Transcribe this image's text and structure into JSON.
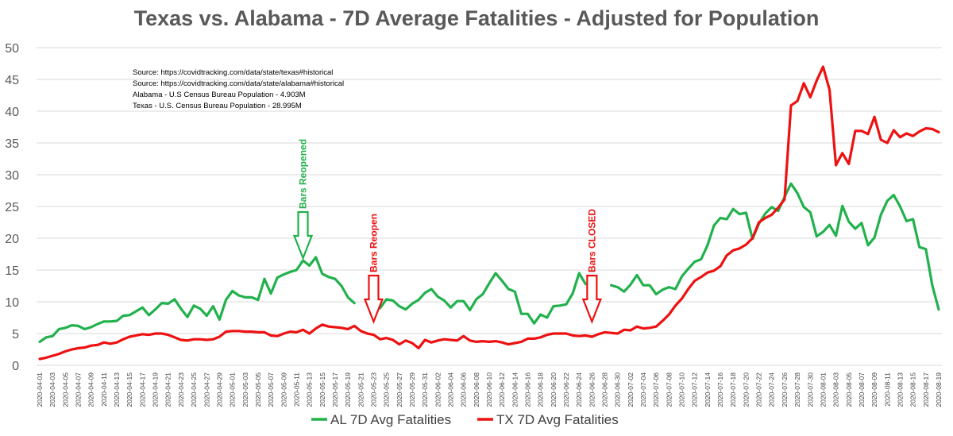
{
  "chart_data": {
    "type": "line",
    "title": "Texas vs. Alabama - 7D Average Fatalities - Adjusted for Population",
    "xlabel": "",
    "ylabel": "",
    "ylim": [
      0,
      50
    ],
    "yticks": [
      0,
      5,
      10,
      15,
      20,
      25,
      30,
      35,
      40,
      45,
      50
    ],
    "grid": true,
    "legend_position": "bottom",
    "x_tick_labels": [
      "2020-04-01",
      "2020-04-03",
      "2020-04-05",
      "2020-04-07",
      "2020-04-09",
      "2020-04-11",
      "2020-04-13",
      "2020-04-15",
      "2020-04-17",
      "2020-04-19",
      "2020-04-21",
      "2020-04-23",
      "2020-04-25",
      "2020-04-27",
      "2020-04-29",
      "2020-05-01",
      "2020-05-03",
      "2020-05-05",
      "2020-05-07",
      "2020-05-09",
      "2020-05-11",
      "2020-05-13",
      "2020-05-15",
      "2020-05-17",
      "2020-05-19",
      "2020-05-21",
      "2020-05-23",
      "2020-05-25",
      "2020-05-27",
      "2020-05-29",
      "2020-05-31",
      "2020-06-02",
      "2020-06-04",
      "2020-06-06",
      "2020-06-08",
      "2020-06-10",
      "2020-06-12",
      "2020-06-14",
      "2020-06-16",
      "2020-06-18",
      "2020-06-20",
      "2020-06-22",
      "2020-06-24",
      "2020-06-26",
      "2020-06-28",
      "2020-06-30",
      "2020-07-02",
      "2020-07-04",
      "2020-07-06",
      "2020-07-08",
      "2020-07-10",
      "2020-07-12",
      "2020-07-14",
      "2020-07-16",
      "2020-07-18",
      "2020-07-20",
      "2020-07-22",
      "2020-07-24",
      "2020-07-26",
      "2020-07-28",
      "2020-07-30",
      "2020-08-01",
      "2020-08-03",
      "2020-08-05",
      "2020-08-07",
      "2020-08-09",
      "2020-08-11",
      "2020-08-13",
      "2020-08-15",
      "2020-08-17",
      "2020-08-19"
    ],
    "series": [
      {
        "name": "AL 7D Avg Fatalities",
        "color": "#22b14c",
        "values": [
          3.7,
          4.4,
          4.6,
          5.7,
          5.9,
          6.3,
          6.2,
          5.7,
          6.0,
          6.5,
          6.9,
          6.9,
          7.0,
          7.8,
          7.9,
          8.5,
          9.1,
          7.9,
          8.8,
          9.8,
          9.7,
          10.4,
          8.9,
          7.6,
          9.4,
          8.9,
          7.8,
          9.3,
          7.2,
          10.3,
          11.7,
          11.0,
          10.7,
          10.7,
          10.3,
          13.6,
          11.3,
          13.8,
          14.3,
          14.7,
          15.0,
          16.5,
          15.7,
          17.0,
          14.4,
          13.9,
          13.6,
          12.5,
          10.7,
          9.8,
          null,
          null,
          null,
          9.0,
          10.4,
          10.2,
          9.3,
          8.8,
          9.7,
          10.3,
          11.4,
          12.0,
          10.8,
          10.2,
          9.1,
          10.1,
          10.1,
          8.7,
          10.4,
          11.2,
          12.9,
          14.5,
          13.3,
          12.0,
          11.6,
          8.1,
          8.1,
          6.6,
          8.0,
          7.5,
          9.3,
          9.4,
          9.6,
          11.3,
          14.5,
          12.8,
          null,
          null,
          null,
          12.6,
          12.3,
          11.6,
          12.7,
          14.2,
          12.6,
          12.6,
          11.2,
          11.9,
          12.3,
          12.0,
          14.0,
          15.2,
          16.3,
          16.7,
          18.9,
          22.0,
          23.2,
          23.0,
          24.6,
          23.8,
          24.0,
          19.9,
          22.3,
          23.9,
          24.9,
          24.3,
          26.5,
          28.6,
          27.1,
          24.9,
          24.1,
          20.3,
          21.0,
          22.1,
          20.4,
          25.1,
          22.6,
          21.5,
          22.4,
          18.9,
          20.1,
          23.7,
          25.9,
          26.8,
          25.0,
          22.7,
          23.0,
          18.6,
          18.3,
          12.6,
          8.8
        ]
      },
      {
        "name": "TX 7D Avg Fatalities",
        "color": "#ee1111",
        "values": [
          1.0,
          1.2,
          1.5,
          1.8,
          2.2,
          2.5,
          2.7,
          2.8,
          3.1,
          3.2,
          3.6,
          3.4,
          3.6,
          4.1,
          4.5,
          4.7,
          4.9,
          4.8,
          5.0,
          5.0,
          4.8,
          4.4,
          4.0,
          3.9,
          4.1,
          4.1,
          4.0,
          4.1,
          4.5,
          5.3,
          5.4,
          5.4,
          5.3,
          5.3,
          5.2,
          5.2,
          4.7,
          4.6,
          5.0,
          5.3,
          5.2,
          5.6,
          5.0,
          5.8,
          6.4,
          6.1,
          6.0,
          5.9,
          5.7,
          6.2,
          5.4,
          5.0,
          4.8,
          4.1,
          4.3,
          4.0,
          3.3,
          3.9,
          3.5,
          2.7,
          4.0,
          3.6,
          3.9,
          4.1,
          4.0,
          3.9,
          4.6,
          3.9,
          3.7,
          3.8,
          3.7,
          3.8,
          3.6,
          3.3,
          3.5,
          3.7,
          4.2,
          4.2,
          4.4,
          4.8,
          5.0,
          5.0,
          5.0,
          4.7,
          4.6,
          4.7,
          4.5,
          4.9,
          5.2,
          5.1,
          5.0,
          5.6,
          5.5,
          6.1,
          5.8,
          5.9,
          6.1,
          7.0,
          8.0,
          9.4,
          10.5,
          12.0,
          13.3,
          13.9,
          14.6,
          14.9,
          15.6,
          17.3,
          18.1,
          18.4,
          19.0,
          20.0,
          22.5,
          23.2,
          23.7,
          24.8,
          26.1,
          40.9,
          41.6,
          44.4,
          42.2,
          44.8,
          47.0,
          43.4,
          31.5,
          33.4,
          31.7,
          36.9,
          36.9,
          36.4,
          39.1,
          35.5,
          35.0,
          37.0,
          35.9,
          36.5,
          36.1,
          36.8,
          37.3,
          37.2,
          36.7
        ]
      }
    ],
    "notes": [
      "Source:  https://covidtracking.com/data/state/texas#historical",
      "Source:  https://covidtracking.com/data/state/alabama#historical",
      "Alabama - U.S Census Bureau Population - 4.903M",
      "Texas - U.S. Census Bureau Population - 28.995M"
    ],
    "annotations": [
      {
        "text": "Bars Reopened",
        "date_index": 41,
        "color": "#22b14c"
      },
      {
        "text": "Bars Reopen",
        "date_index": 52,
        "color": "#ee1111"
      },
      {
        "text": "Bars CLOSED",
        "date_index": 86,
        "color": "#ee1111"
      }
    ]
  }
}
